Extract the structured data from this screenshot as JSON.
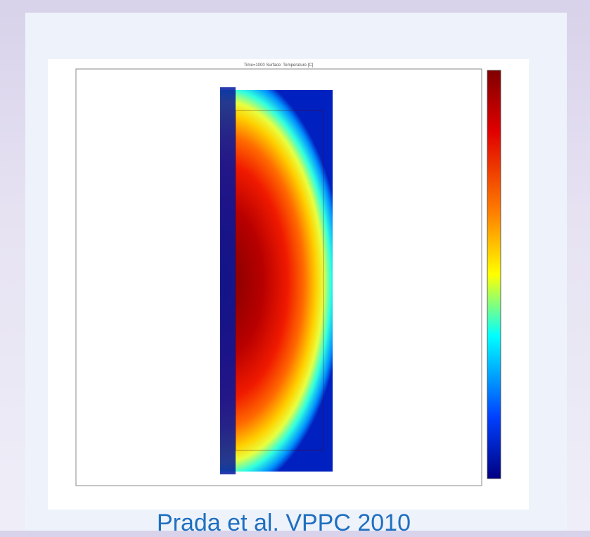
{
  "plot": {
    "title": "Time=1000   Surface: Temperature [C]"
  },
  "caption": "Prada et al. VPPC 2010"
}
